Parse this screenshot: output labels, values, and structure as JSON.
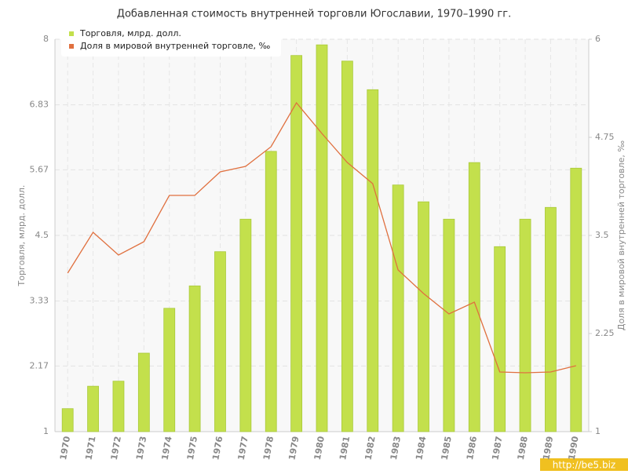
{
  "chart_data": {
    "type": "bar_line",
    "title": "Добавленная стоимость внутренней торговли Югославии, 1970–1990 гг.",
    "ylabel": "Торговля, млрд. долл.",
    "y2label": "Доля в мировой внутренней торговле, ‰",
    "categories": [
      "1970",
      "1971",
      "1972",
      "1973",
      "1974",
      "1975",
      "1976",
      "1977",
      "1978",
      "1979",
      "1980",
      "1981",
      "1982",
      "1983",
      "1984",
      "1985",
      "1986",
      "1987",
      "1988",
      "1989",
      "1990"
    ],
    "series": [
      {
        "name": "Торговля, млрд. долл.",
        "type": "bar",
        "color": "#c3e04c",
        "values": [
          1.41,
          1.81,
          1.9,
          2.4,
          3.2,
          3.6,
          4.21,
          4.79,
          6.0,
          7.71,
          7.9,
          7.61,
          7.1,
          5.4,
          5.1,
          4.79,
          5.8,
          4.3,
          4.79,
          5.0,
          5.7
        ]
      },
      {
        "name": "Доля в мировой внутренней торговле, ‰",
        "type": "line",
        "axis": "y2",
        "color": "#e0703f",
        "values": [
          3.02,
          3.54,
          3.25,
          3.42,
          4.01,
          4.01,
          4.31,
          4.38,
          4.63,
          5.19,
          4.8,
          4.43,
          4.16,
          3.06,
          2.76,
          2.5,
          2.65,
          1.76,
          1.75,
          1.76,
          1.84
        ]
      }
    ],
    "ylim": [
      1,
      8
    ],
    "yticks": [
      1,
      2.17,
      3.33,
      4.5,
      5.67,
      6.83,
      8
    ],
    "y2lim": [
      1,
      6
    ],
    "y2ticks": [
      1,
      2.25,
      3.5,
      4.75,
      6
    ],
    "grid": true,
    "legend": "top-left",
    "watermark": "http://be5.biz"
  }
}
